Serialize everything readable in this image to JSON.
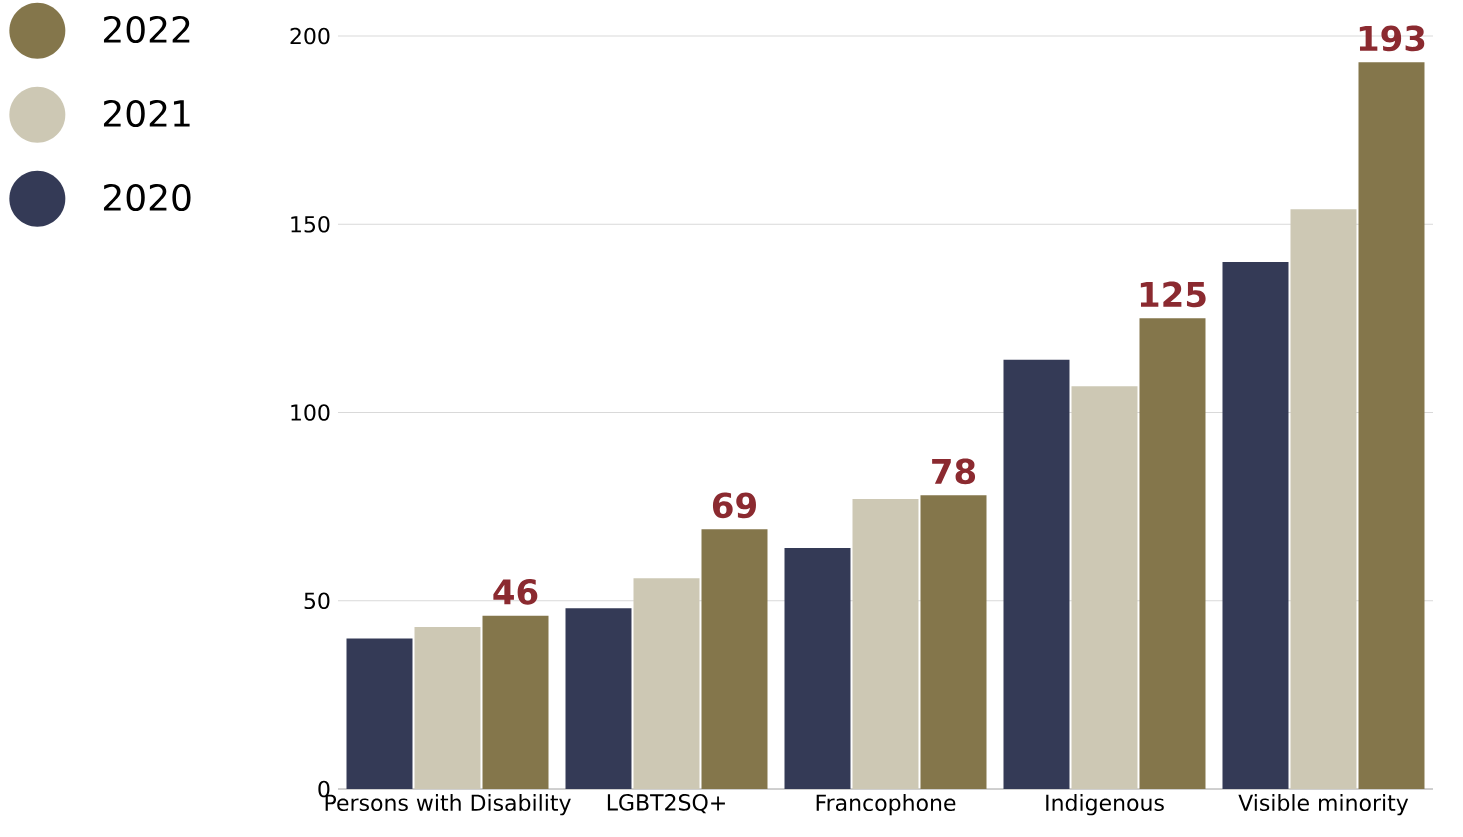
{
  "chart_data": {
    "type": "bar",
    "categories": [
      "Persons with Disability",
      "LGBT2SQ+",
      "Francophone",
      "Indigenous",
      "Visible minority"
    ],
    "series": [
      {
        "name": "2020",
        "color": "#343a56",
        "values": [
          40,
          48,
          64,
          114,
          140
        ]
      },
      {
        "name": "2021",
        "color": "#cdc8b4",
        "values": [
          43,
          56,
          77,
          107,
          154
        ]
      },
      {
        "name": "2022",
        "color": "#84764b",
        "values": [
          46,
          69,
          78,
          125,
          193
        ],
        "value_labels": [
          "46",
          "69",
          "78",
          "125",
          "193"
        ]
      }
    ],
    "ylim": [
      0,
      200
    ],
    "yticks": [
      0,
      50,
      100,
      150,
      200
    ],
    "grid": "y",
    "legend": "top left"
  }
}
